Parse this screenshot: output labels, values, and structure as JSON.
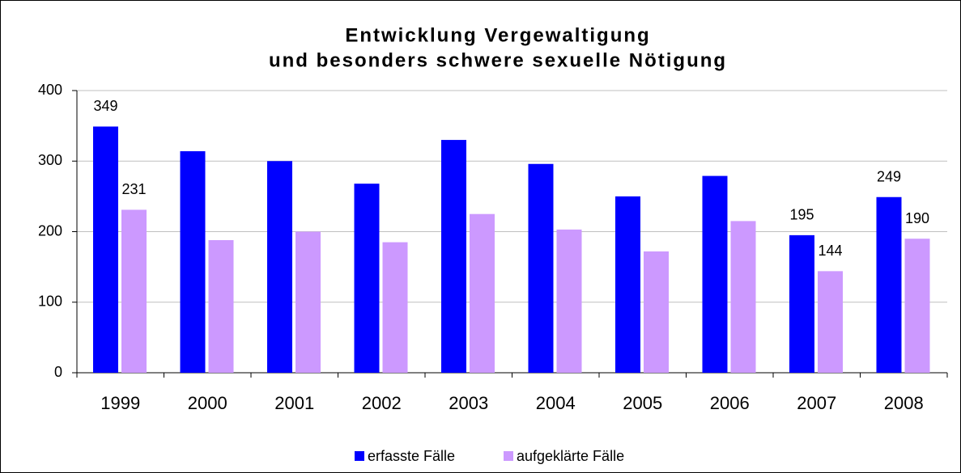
{
  "chart_data": {
    "type": "bar",
    "title": [
      "Entwicklung Vergewaltigung",
      "und besonders schwere sexuelle Nötigung"
    ],
    "categories": [
      "1999",
      "2000",
      "2001",
      "2002",
      "2003",
      "2004",
      "2005",
      "2006",
      "2007",
      "2008"
    ],
    "series": [
      {
        "name": "erfasste Fälle",
        "color": "#0000ff",
        "values": [
          349,
          314,
          300,
          268,
          330,
          296,
          250,
          279,
          195,
          249
        ],
        "value_labels": [
          "349",
          null,
          null,
          null,
          null,
          null,
          null,
          null,
          "195",
          "249"
        ]
      },
      {
        "name": "aufgeklärte Fälle",
        "color": "#cc99ff",
        "values": [
          231,
          188,
          200,
          185,
          225,
          203,
          172,
          215,
          144,
          190
        ],
        "value_labels": [
          "231",
          null,
          null,
          null,
          null,
          null,
          null,
          null,
          "144",
          "190"
        ]
      }
    ],
    "ylim": [
      0,
      400
    ],
    "yticks": [
      0,
      100,
      200,
      300,
      400
    ],
    "grid": true,
    "legend": "bottom"
  }
}
